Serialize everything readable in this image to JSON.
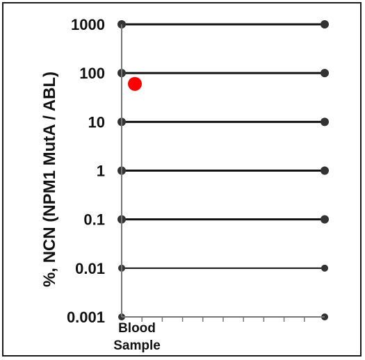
{
  "chart_data": {
    "type": "scatter",
    "title": "",
    "xlabel": "",
    "ylabel": "%, NCN (NPM1 MutA / ABL)",
    "y_scale": "log",
    "ylim": [
      0.001,
      1000
    ],
    "y_ticks": [
      {
        "value": 1000,
        "label": "1000"
      },
      {
        "value": 100,
        "label": "100"
      },
      {
        "value": 10,
        "label": "10"
      },
      {
        "value": 1,
        "label": "1"
      },
      {
        "value": 0.1,
        "label": "0.1"
      },
      {
        "value": 0.01,
        "label": "0.01"
      },
      {
        "value": 0.001,
        "label": "0.001"
      }
    ],
    "categories": [
      "Blood Sample"
    ],
    "category_label_lines": [
      "Blood",
      "Sample"
    ],
    "x_minor_ticks": 10,
    "grid": true,
    "point_color": "#ff0000",
    "grid_color": "#111111",
    "points": [
      {
        "category": "Blood Sample",
        "y": 60
      }
    ]
  }
}
